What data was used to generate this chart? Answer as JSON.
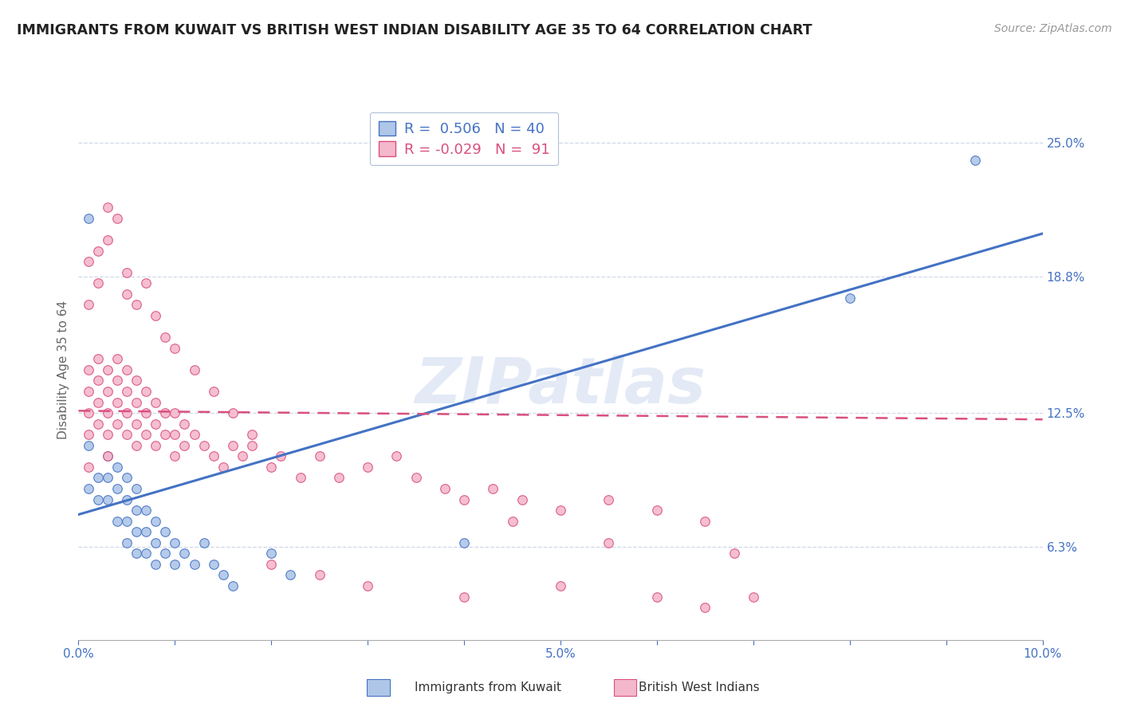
{
  "title": "IMMIGRANTS FROM KUWAIT VS BRITISH WEST INDIAN DISABILITY AGE 35 TO 64 CORRELATION CHART",
  "source": "Source: ZipAtlas.com",
  "ylabel": "Disability Age 35 to 64",
  "xlim": [
    0.0,
    0.1
  ],
  "ylim": [
    0.02,
    0.27
  ],
  "xticks": [
    0.0,
    0.01,
    0.02,
    0.03,
    0.04,
    0.05,
    0.06,
    0.07,
    0.08,
    0.09,
    0.1
  ],
  "xticklabels": [
    "0.0%",
    "",
    "",
    "",
    "",
    "5.0%",
    "",
    "",
    "",
    "",
    "10.0%"
  ],
  "right_yticks": [
    0.063,
    0.125,
    0.188,
    0.25
  ],
  "right_yticklabels": [
    "6.3%",
    "12.5%",
    "18.8%",
    "25.0%"
  ],
  "legend_r_blue": "R =  0.506",
  "legend_n_blue": "N = 40",
  "legend_r_pink": "R = -0.029",
  "legend_n_pink": "N =  91",
  "blue_color": "#aec6e8",
  "pink_color": "#f4b8cc",
  "blue_line_color": "#4472c4",
  "pink_line_color": "#d94f7e",
  "watermark": "ZIPatlas",
  "watermark_color": "#ccd9f0",
  "blue_line_x0": 0.0,
  "blue_line_y0": 0.078,
  "blue_line_x1": 0.1,
  "blue_line_y1": 0.208,
  "pink_line_x0": 0.0,
  "pink_line_y0": 0.126,
  "pink_line_x1": 0.1,
  "pink_line_y1": 0.122,
  "blue_scatter_x": [
    0.001,
    0.001,
    0.001,
    0.002,
    0.002,
    0.003,
    0.003,
    0.003,
    0.004,
    0.004,
    0.004,
    0.005,
    0.005,
    0.005,
    0.005,
    0.006,
    0.006,
    0.006,
    0.006,
    0.007,
    0.007,
    0.007,
    0.008,
    0.008,
    0.008,
    0.009,
    0.009,
    0.01,
    0.01,
    0.011,
    0.012,
    0.013,
    0.014,
    0.015,
    0.016,
    0.02,
    0.022,
    0.04,
    0.08,
    0.093
  ],
  "blue_scatter_y": [
    0.215,
    0.11,
    0.09,
    0.095,
    0.085,
    0.105,
    0.095,
    0.085,
    0.1,
    0.09,
    0.075,
    0.095,
    0.085,
    0.075,
    0.065,
    0.09,
    0.08,
    0.07,
    0.06,
    0.08,
    0.07,
    0.06,
    0.075,
    0.065,
    0.055,
    0.07,
    0.06,
    0.065,
    0.055,
    0.06,
    0.055,
    0.065,
    0.055,
    0.05,
    0.045,
    0.06,
    0.05,
    0.065,
    0.178,
    0.242
  ],
  "pink_scatter_x": [
    0.001,
    0.001,
    0.001,
    0.001,
    0.001,
    0.002,
    0.002,
    0.002,
    0.002,
    0.003,
    0.003,
    0.003,
    0.003,
    0.003,
    0.004,
    0.004,
    0.004,
    0.004,
    0.005,
    0.005,
    0.005,
    0.005,
    0.006,
    0.006,
    0.006,
    0.006,
    0.007,
    0.007,
    0.007,
    0.008,
    0.008,
    0.008,
    0.009,
    0.009,
    0.01,
    0.01,
    0.01,
    0.011,
    0.011,
    0.012,
    0.013,
    0.014,
    0.015,
    0.016,
    0.017,
    0.018,
    0.02,
    0.021,
    0.023,
    0.025,
    0.027,
    0.03,
    0.033,
    0.035,
    0.038,
    0.04,
    0.043,
    0.046,
    0.05,
    0.055,
    0.06,
    0.065,
    0.001,
    0.001,
    0.002,
    0.002,
    0.003,
    0.003,
    0.004,
    0.005,
    0.005,
    0.006,
    0.007,
    0.008,
    0.009,
    0.01,
    0.012,
    0.014,
    0.016,
    0.018,
    0.02,
    0.025,
    0.03,
    0.04,
    0.05,
    0.06,
    0.065,
    0.07,
    0.045,
    0.055,
    0.068
  ],
  "pink_scatter_y": [
    0.145,
    0.135,
    0.125,
    0.115,
    0.1,
    0.15,
    0.14,
    0.13,
    0.12,
    0.145,
    0.135,
    0.125,
    0.115,
    0.105,
    0.15,
    0.14,
    0.13,
    0.12,
    0.145,
    0.135,
    0.125,
    0.115,
    0.14,
    0.13,
    0.12,
    0.11,
    0.135,
    0.125,
    0.115,
    0.13,
    0.12,
    0.11,
    0.125,
    0.115,
    0.125,
    0.115,
    0.105,
    0.12,
    0.11,
    0.115,
    0.11,
    0.105,
    0.1,
    0.11,
    0.105,
    0.11,
    0.1,
    0.105,
    0.095,
    0.105,
    0.095,
    0.1,
    0.105,
    0.095,
    0.09,
    0.085,
    0.09,
    0.085,
    0.08,
    0.085,
    0.08,
    0.075,
    0.195,
    0.175,
    0.2,
    0.185,
    0.22,
    0.205,
    0.215,
    0.19,
    0.18,
    0.175,
    0.185,
    0.17,
    0.16,
    0.155,
    0.145,
    0.135,
    0.125,
    0.115,
    0.055,
    0.05,
    0.045,
    0.04,
    0.045,
    0.04,
    0.035,
    0.04,
    0.075,
    0.065,
    0.06
  ]
}
